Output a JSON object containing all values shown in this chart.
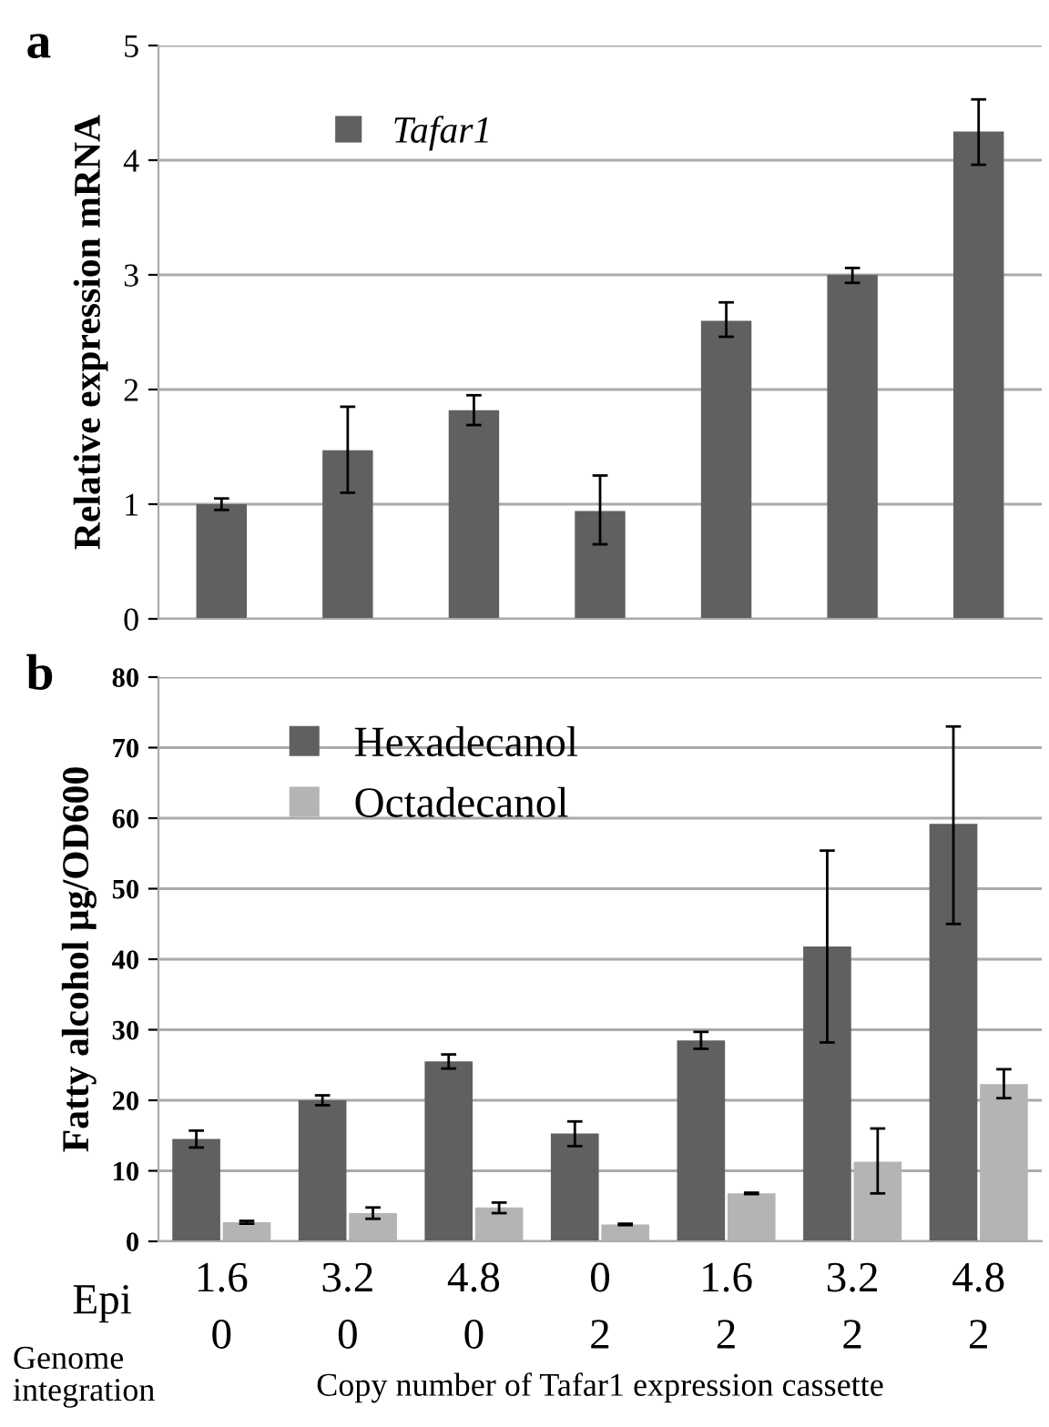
{
  "chart_data": [
    {
      "type": "bar",
      "title": "a",
      "ylabel": "Relative expression mRNA",
      "categories": [
        null,
        null,
        null,
        null,
        null,
        null,
        null
      ],
      "series": [
        {
          "name": "Tafar1",
          "color": "#606060",
          "values": [
            1.0,
            1.47,
            1.82,
            0.94,
            2.6,
            3.0,
            4.25
          ],
          "errors": [
            0.05,
            [
              1.1,
              1.85
            ],
            [
              1.69,
              1.95
            ],
            [
              0.65,
              1.25
            ],
            [
              2.46,
              2.76
            ],
            [
              2.93,
              3.06
            ],
            [
              3.96,
              4.53
            ]
          ]
        }
      ],
      "ylim": [
        0,
        5
      ],
      "yticks": [
        0,
        1,
        2,
        3,
        4,
        5
      ],
      "grid": "y",
      "legend": "top left"
    },
    {
      "type": "bar",
      "title": "b",
      "ylabel": "Fatty alcohol µg/OD600",
      "xlabel": "Copy number of Tafar1 expression cassette",
      "categories": [
        "1.6\n0",
        "3.2\n0",
        "4.8\n0",
        "0\n2",
        "1.6\n2",
        "3.2\n2",
        "4.8\n2"
      ],
      "series": [
        {
          "name": "Hexadecanol",
          "color": "#606060",
          "values": [
            14.5,
            20,
            25.5,
            15.3,
            28.5,
            41.8,
            59.2
          ],
          "errors": [
            [
              13.3,
              15.7
            ],
            [
              19.3,
              20.7
            ],
            [
              24.5,
              26.5
            ],
            [
              13.5,
              17
            ],
            [
              27.3,
              29.7
            ],
            [
              28.2,
              55.4
            ],
            [
              45,
              73
            ]
          ]
        },
        {
          "name": "Octadecanol",
          "color": "#b4b4b4",
          "values": [
            2.7,
            4,
            4.8,
            2.4,
            6.8,
            11.3,
            22.3
          ],
          "errors": [
            [
              2.5,
              2.9
            ],
            [
              3.2,
              4.8
            ],
            [
              4,
              5.5
            ],
            [
              2.3,
              2.5
            ],
            [
              6.7,
              6.9
            ],
            [
              6.8,
              16
            ],
            [
              20.3,
              24.4
            ]
          ]
        }
      ],
      "ylim": [
        0,
        80
      ],
      "yticks": [
        0,
        10,
        20,
        30,
        40,
        50,
        60,
        70,
        80
      ],
      "grid": "y",
      "legend": "top left",
      "annotations": [
        "Epi",
        "Genome\nintegration"
      ]
    }
  ]
}
